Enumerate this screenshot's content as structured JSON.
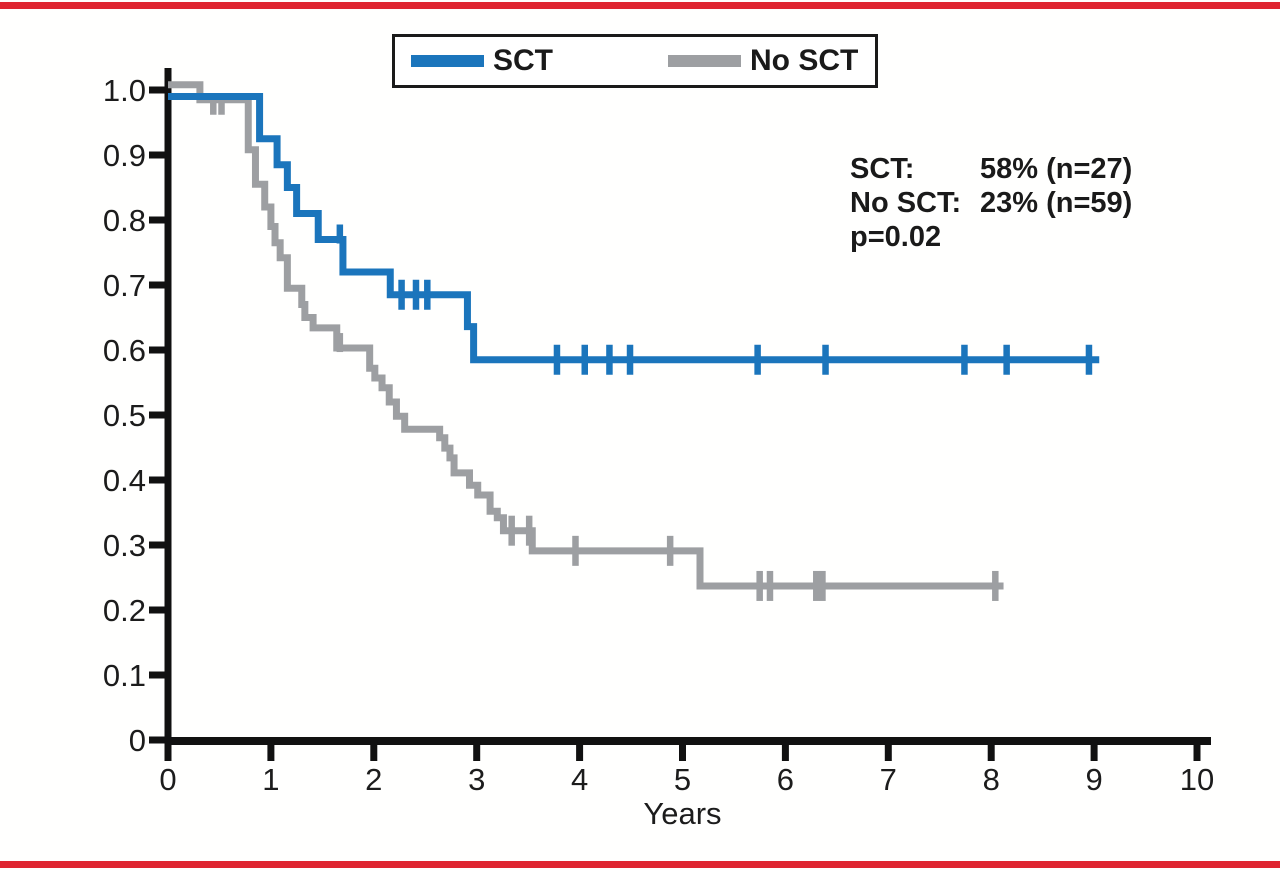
{
  "page": {
    "background": "#fffffe",
    "border_rule_color": "#df2530"
  },
  "legend": {
    "items": [
      {
        "label": "SCT",
        "color": "#1b75bc"
      },
      {
        "label": "No SCT",
        "color": "#9d9fa2"
      }
    ]
  },
  "annotation": {
    "rows": [
      {
        "label": "SCT:",
        "value": "58% (n=27)"
      },
      {
        "label": "No SCT:",
        "value": "23% (n=59)"
      },
      {
        "label": "p=0.02",
        "value": ""
      }
    ]
  },
  "chart_data": {
    "type": "line",
    "variant": "kaplan-meier-step",
    "title": "",
    "xlabel": "Years",
    "ylabel": "",
    "xlim": [
      0,
      10
    ],
    "ylim": [
      0,
      1.0
    ],
    "grid": false,
    "legend_position": "top-center",
    "axis_color": "#111111",
    "x_ticks": [
      0,
      1,
      2,
      3,
      4,
      5,
      6,
      7,
      8,
      9,
      10
    ],
    "x_tick_labels": [
      "0",
      "1",
      "2",
      "3",
      "4",
      "5",
      "6",
      "7",
      "8",
      "9",
      "10"
    ],
    "y_ticks": [
      1.0,
      0.9,
      0.8,
      0.7,
      0.6,
      0.5,
      0.4,
      0.3,
      0.2,
      0.1,
      0
    ],
    "y_tick_labels": [
      "1.0",
      "0.9",
      "0.8",
      "0.7",
      "0.6",
      "0.5",
      "0.4",
      "0.3",
      "0.2",
      "0.1",
      "0"
    ],
    "series": [
      {
        "name": "SCT",
        "n": 27,
        "final_survival": 0.58,
        "result_label": "58% (n=27)",
        "color": "#1b75bc",
        "steps": [
          [
            0,
            0.99
          ],
          [
            0.89,
            0.925
          ],
          [
            1.06,
            0.885
          ],
          [
            1.16,
            0.85
          ],
          [
            1.25,
            0.81
          ],
          [
            1.46,
            0.77
          ],
          [
            1.7,
            0.72
          ],
          [
            2.16,
            0.685
          ],
          [
            2.91,
            0.636
          ],
          [
            2.97,
            0.585
          ]
        ],
        "end_time": 9.05,
        "censors": [
          {
            "t": 1.67,
            "s": 0.77,
            "dir": "up"
          },
          {
            "t": 2.27,
            "s": 0.685,
            "dir": "both"
          },
          {
            "t": 2.41,
            "s": 0.685,
            "dir": "both"
          },
          {
            "t": 2.52,
            "s": 0.685,
            "dir": "both"
          },
          {
            "t": 3.78,
            "s": 0.585,
            "dir": "both"
          },
          {
            "t": 4.05,
            "s": 0.585,
            "dir": "both"
          },
          {
            "t": 4.29,
            "s": 0.585,
            "dir": "both"
          },
          {
            "t": 4.49,
            "s": 0.585,
            "dir": "both"
          },
          {
            "t": 5.73,
            "s": 0.585,
            "dir": "both"
          },
          {
            "t": 6.39,
            "s": 0.585,
            "dir": "both"
          },
          {
            "t": 7.74,
            "s": 0.585,
            "dir": "both"
          },
          {
            "t": 8.15,
            "s": 0.585,
            "dir": "both"
          },
          {
            "t": 8.95,
            "s": 0.585,
            "dir": "both"
          }
        ]
      },
      {
        "name": "No SCT",
        "n": 59,
        "final_survival": 0.23,
        "result_label": "23% (n=59)",
        "color": "#9d9fa2",
        "steps": [
          [
            0,
            1.008
          ],
          [
            0.31,
            0.985
          ],
          [
            0.78,
            0.908
          ],
          [
            0.85,
            0.855
          ],
          [
            0.94,
            0.82
          ],
          [
            1.0,
            0.79
          ],
          [
            1.04,
            0.765
          ],
          [
            1.09,
            0.742
          ],
          [
            1.16,
            0.695
          ],
          [
            1.3,
            0.67
          ],
          [
            1.33,
            0.65
          ],
          [
            1.41,
            0.634
          ],
          [
            1.64,
            0.603
          ],
          [
            1.96,
            0.572
          ],
          [
            2.01,
            0.557
          ],
          [
            2.08,
            0.542
          ],
          [
            2.15,
            0.52
          ],
          [
            2.22,
            0.498
          ],
          [
            2.3,
            0.478
          ],
          [
            2.64,
            0.465
          ],
          [
            2.69,
            0.449
          ],
          [
            2.74,
            0.434
          ],
          [
            2.78,
            0.411
          ],
          [
            2.93,
            0.392
          ],
          [
            3.01,
            0.377
          ],
          [
            3.13,
            0.352
          ],
          [
            3.2,
            0.342
          ],
          [
            3.26,
            0.322
          ],
          [
            3.54,
            0.291
          ],
          [
            5.17,
            0.237
          ]
        ],
        "end_time": 8.12,
        "censors": [
          {
            "t": 0.44,
            "s": 0.985,
            "dir": "down"
          },
          {
            "t": 0.52,
            "s": 0.985,
            "dir": "down"
          },
          {
            "t": 1.67,
            "s": 0.603,
            "dir": "up"
          },
          {
            "t": 3.34,
            "s": 0.322,
            "dir": "both"
          },
          {
            "t": 3.51,
            "s": 0.322,
            "dir": "both"
          },
          {
            "t": 3.96,
            "s": 0.291,
            "dir": "both"
          },
          {
            "t": 4.88,
            "s": 0.291,
            "dir": "both"
          },
          {
            "t": 5.75,
            "s": 0.237,
            "dir": "both"
          },
          {
            "t": 5.85,
            "s": 0.237,
            "dir": "both"
          },
          {
            "t": 6.3,
            "s": 0.237,
            "dir": "both"
          },
          {
            "t": 6.36,
            "s": 0.237,
            "dir": "both"
          },
          {
            "t": 8.04,
            "s": 0.237,
            "dir": "both"
          }
        ]
      }
    ]
  }
}
